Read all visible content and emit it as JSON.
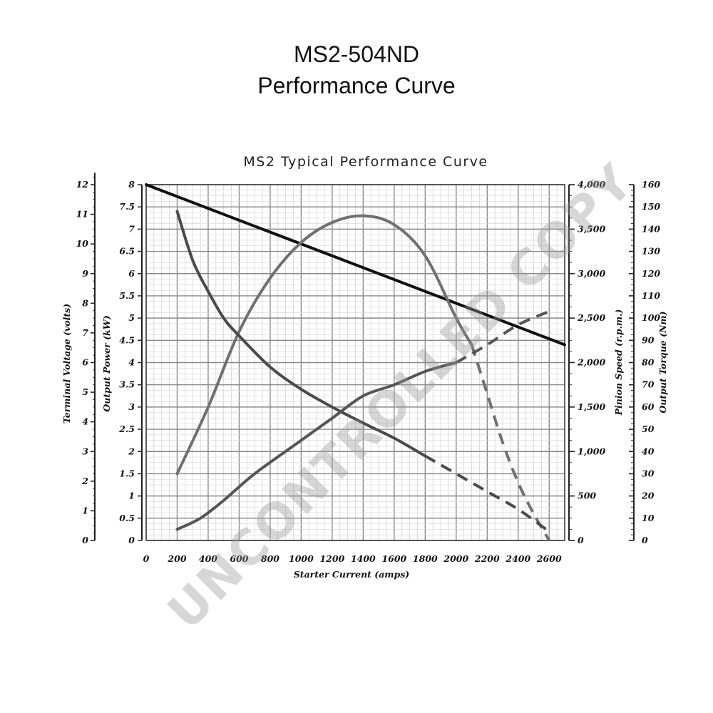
{
  "page": {
    "title_line1": "MS2-504ND",
    "title_line2": "Performance Curve",
    "watermark": "UNCONTROLLED COPY"
  },
  "chart_data": {
    "type": "line",
    "title": "MS2 Typical Performance Curve",
    "xlabel": "Starter Current  (amps)",
    "xlim": [
      0,
      2700
    ],
    "x_ticks": [
      "0",
      "200",
      "400",
      "600",
      "800",
      "1000",
      "1200",
      "1400",
      "1600",
      "1800",
      "2000",
      "2200",
      "2400",
      "2600"
    ],
    "axes": {
      "output_power": {
        "label": "Output Power (kW)",
        "range": [
          0,
          8
        ],
        "ticks": [
          "0",
          "0.5",
          "1",
          "1.5",
          "2",
          "2.5",
          "3",
          "3.5",
          "4",
          "4.5",
          "5",
          "5.5",
          "6",
          "6.5",
          "7",
          "7.5",
          "8"
        ]
      },
      "terminal_voltage": {
        "label": "Terminal Voltage (volts)",
        "range": [
          0,
          12
        ],
        "ticks": [
          "0",
          "1",
          "2",
          "3",
          "4",
          "5",
          "6",
          "7",
          "8",
          "9",
          "10",
          "11",
          "12"
        ]
      },
      "pinion_speed": {
        "label": "Pinion Speed (r.p.m.)",
        "range": [
          0,
          4000
        ],
        "ticks": [
          "0",
          "500",
          "1,000",
          "1,500",
          "2,000",
          "2,500",
          "3,000",
          "3,500",
          "4,000"
        ]
      },
      "output_torque": {
        "label": "Output Torque (Nm)",
        "range": [
          0,
          160
        ],
        "ticks": [
          "0",
          "10",
          "20",
          "30",
          "40",
          "50",
          "60",
          "70",
          "80",
          "90",
          "100",
          "110",
          "120",
          "130",
          "140",
          "150",
          "160"
        ]
      }
    },
    "series": [
      {
        "key": "voltage",
        "axis": "terminal_voltage",
        "color": "#111111",
        "dashed_from": null,
        "x": [
          0,
          2700
        ],
        "y": [
          12,
          6.6
        ]
      },
      {
        "key": "power",
        "axis": "output_power",
        "color": "#707070",
        "dashed_from": 2050,
        "x": [
          200,
          400,
          600,
          800,
          1000,
          1200,
          1400,
          1600,
          1800,
          2000,
          2100,
          2200,
          2300,
          2400,
          2500,
          2600
        ],
        "y": [
          1.5,
          3.0,
          4.7,
          5.9,
          6.7,
          7.15,
          7.3,
          7.1,
          6.4,
          5.0,
          4.4,
          3.3,
          2.2,
          1.3,
          0.6,
          0.0
        ]
      },
      {
        "key": "speed",
        "axis": "pinion_speed",
        "color": "#4a4a4a",
        "dashed_from": 1750,
        "x": [
          200,
          300,
          400,
          500,
          600,
          800,
          1000,
          1200,
          1400,
          1600,
          1800,
          2000,
          2200,
          2400,
          2600
        ],
        "y": [
          3700,
          3150,
          2800,
          2500,
          2300,
          1950,
          1700,
          1500,
          1320,
          1150,
          950,
          750,
          550,
          350,
          100
        ]
      },
      {
        "key": "torque",
        "axis": "output_torque",
        "color": "#555555",
        "dashed_from": 2000,
        "x": [
          200,
          350,
          500,
          700,
          1000,
          1200,
          1400,
          1600,
          1800,
          2000,
          2200,
          2400,
          2600
        ],
        "y": [
          5,
          10,
          18,
          30,
          45,
          55,
          65,
          70,
          76,
          80,
          88,
          97,
          103
        ]
      }
    ]
  }
}
